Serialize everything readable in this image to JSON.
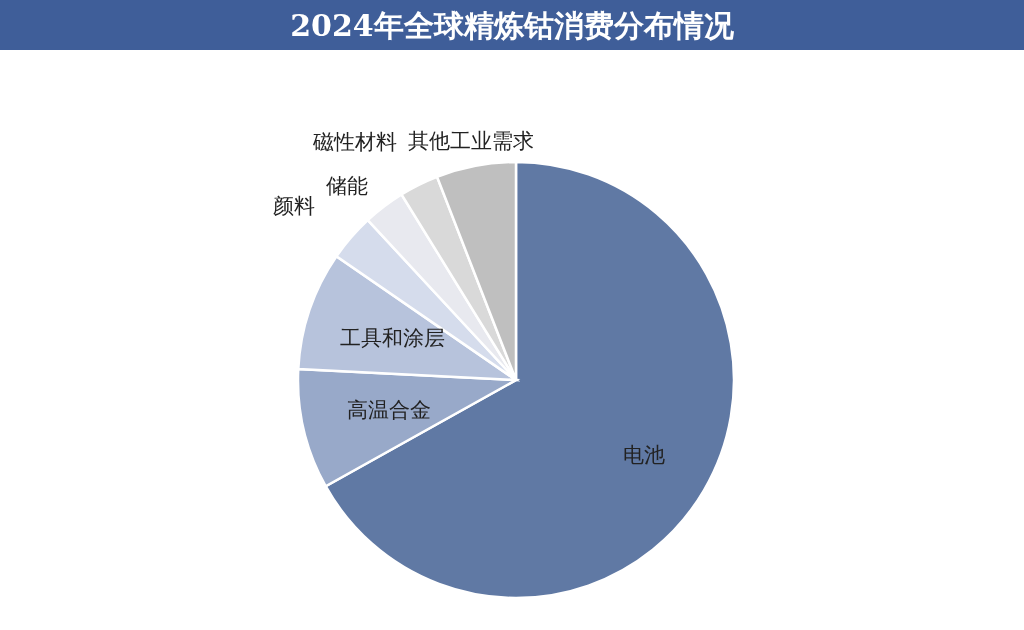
{
  "chart_data": {
    "type": "pie",
    "title": "2024年全球精炼钴消费分布情况",
    "categories": [
      "电池",
      "高温合金",
      "工具和涂层",
      "颜料",
      "储能",
      "磁性材料",
      "其他工业需求"
    ],
    "values": [
      66.9,
      8.9,
      8.8,
      3.5,
      3.1,
      2.9,
      5.9
    ],
    "colors": [
      "#6079a4",
      "#98a9c9",
      "#b7c3dc",
      "#d5dcec",
      "#e8e9ef",
      "#d9d9d9",
      "#bfbfbf"
    ]
  }
}
